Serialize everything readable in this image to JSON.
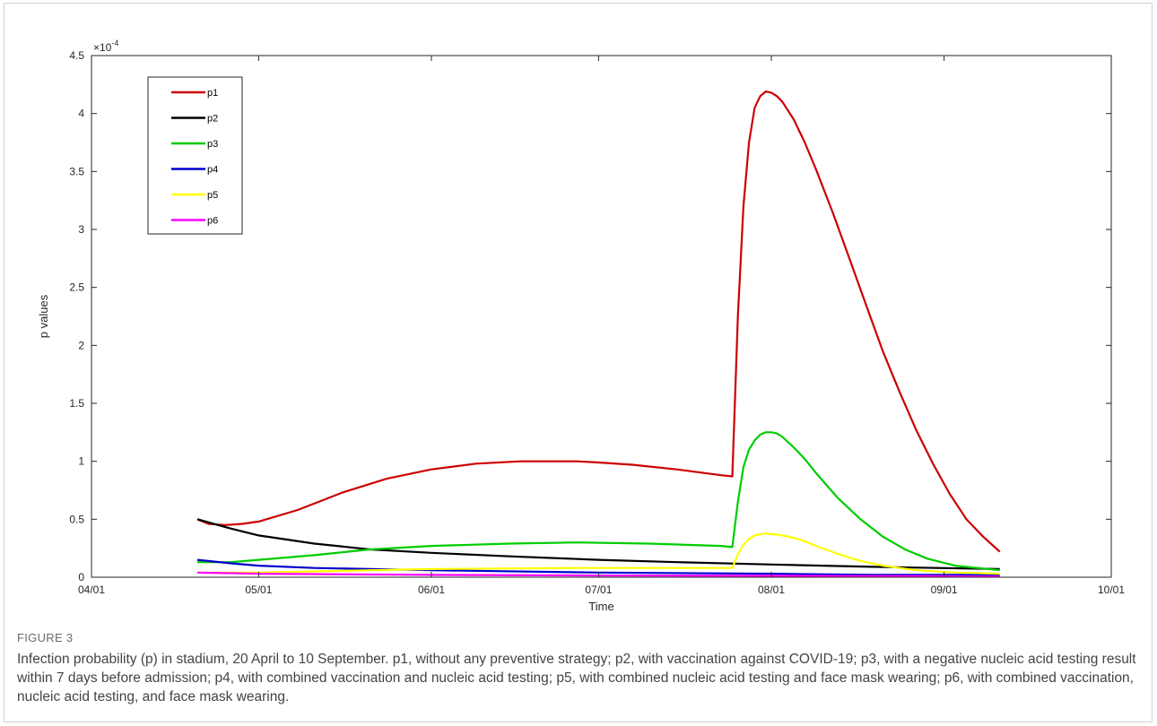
{
  "figure": {
    "label": "FIGURE 3",
    "caption": "Infection probability (p) in stadium, 20 April to 10 September. p1, without any preventive strategy; p2, with vaccination against COVID-19; p3, with a negative nucleic acid testing result within 7 days before admission; p4, with combined vaccination and nucleic acid testing; p5, with combined nucleic acid testing and face mask wearing; p6, with combined vaccination, nucleic acid testing, and face mask wearing."
  },
  "chart_data": {
    "type": "line",
    "xlabel": "Time",
    "ylabel": "p values",
    "y_exponent_label": "×10",
    "y_exponent_power": "-4",
    "xlim": [
      "04/01",
      "10/01"
    ],
    "ylim": [
      0,
      4.5
    ],
    "x_ticks": [
      "04/01",
      "05/01",
      "06/01",
      "07/01",
      "08/01",
      "09/01",
      "10/01"
    ],
    "y_ticks": [
      "0",
      "0.5",
      "1",
      "1.5",
      "2",
      "2.5",
      "3",
      "3.5",
      "4",
      "4.5"
    ],
    "x_tick_values": [
      0,
      30,
      61,
      91,
      122,
      153,
      183
    ],
    "y_tick_values": [
      0,
      0.5,
      1,
      1.5,
      2,
      2.5,
      3,
      3.5,
      4,
      4.5
    ],
    "grid": false,
    "legend_position": "top-left",
    "series": [
      {
        "name": "p1",
        "color": "#cc0000",
        "x": [
          19,
          21,
          24,
          27,
          30,
          37,
          45,
          53,
          61,
          69,
          77,
          83,
          87,
          91,
          97,
          105,
          113,
          115,
          116,
          117,
          118,
          119,
          120,
          121,
          122,
          123,
          124,
          126,
          128,
          130,
          133,
          136,
          139,
          142,
          145,
          148,
          151,
          154,
          157,
          160,
          163
        ],
        "y": [
          0.5,
          0.46,
          0.45,
          0.46,
          0.48,
          0.58,
          0.73,
          0.85,
          0.93,
          0.98,
          1.0,
          1.0,
          1.0,
          0.99,
          0.97,
          0.93,
          0.88,
          0.87,
          2.25,
          3.2,
          3.75,
          4.05,
          4.15,
          4.19,
          4.18,
          4.15,
          4.1,
          3.95,
          3.75,
          3.52,
          3.15,
          2.75,
          2.35,
          1.95,
          1.6,
          1.27,
          0.98,
          0.72,
          0.5,
          0.35,
          0.22
        ]
      },
      {
        "name": "p2",
        "color": "#000000",
        "x": [
          19,
          25,
          30,
          40,
          50,
          61,
          75,
          91,
          105,
          122,
          140,
          163
        ],
        "y": [
          0.5,
          0.42,
          0.36,
          0.29,
          0.24,
          0.21,
          0.18,
          0.15,
          0.13,
          0.11,
          0.09,
          0.07
        ]
      },
      {
        "name": "p3",
        "color": "#00cc00",
        "x": [
          19,
          25,
          30,
          40,
          50,
          61,
          75,
          87,
          100,
          113,
          115,
          116,
          117,
          118,
          119,
          120,
          121,
          122,
          123,
          124,
          126,
          128,
          130,
          134,
          138,
          142,
          146,
          150,
          155,
          163
        ],
        "y": [
          0.13,
          0.13,
          0.15,
          0.19,
          0.24,
          0.27,
          0.29,
          0.3,
          0.29,
          0.27,
          0.26,
          0.65,
          0.95,
          1.1,
          1.18,
          1.23,
          1.25,
          1.25,
          1.24,
          1.21,
          1.12,
          1.02,
          0.9,
          0.68,
          0.5,
          0.35,
          0.24,
          0.16,
          0.1,
          0.06
        ]
      },
      {
        "name": "p4",
        "color": "#0000cc",
        "x": [
          19,
          25,
          30,
          40,
          61,
          91,
          122,
          140,
          163
        ],
        "y": [
          0.15,
          0.12,
          0.1,
          0.08,
          0.06,
          0.04,
          0.03,
          0.02,
          0.02
        ]
      },
      {
        "name": "p5",
        "color": "#ffff00",
        "x": [
          19,
          30,
          40,
          61,
          87,
          100,
          113,
          115,
          116,
          117,
          118,
          119,
          120,
          121,
          122,
          123,
          124,
          126,
          128,
          130,
          134,
          138,
          142,
          148,
          155,
          163
        ],
        "y": [
          0.04,
          0.04,
          0.05,
          0.07,
          0.08,
          0.08,
          0.08,
          0.08,
          0.2,
          0.28,
          0.33,
          0.36,
          0.37,
          0.38,
          0.37,
          0.37,
          0.36,
          0.34,
          0.31,
          0.27,
          0.2,
          0.14,
          0.1,
          0.06,
          0.04,
          0.03
        ]
      },
      {
        "name": "p6",
        "color": "#ff00ff",
        "x": [
          19,
          30,
          61,
          91,
          122,
          140,
          150,
          163
        ],
        "y": [
          0.04,
          0.03,
          0.02,
          0.015,
          0.012,
          0.01,
          0.01,
          0.005
        ]
      }
    ]
  }
}
